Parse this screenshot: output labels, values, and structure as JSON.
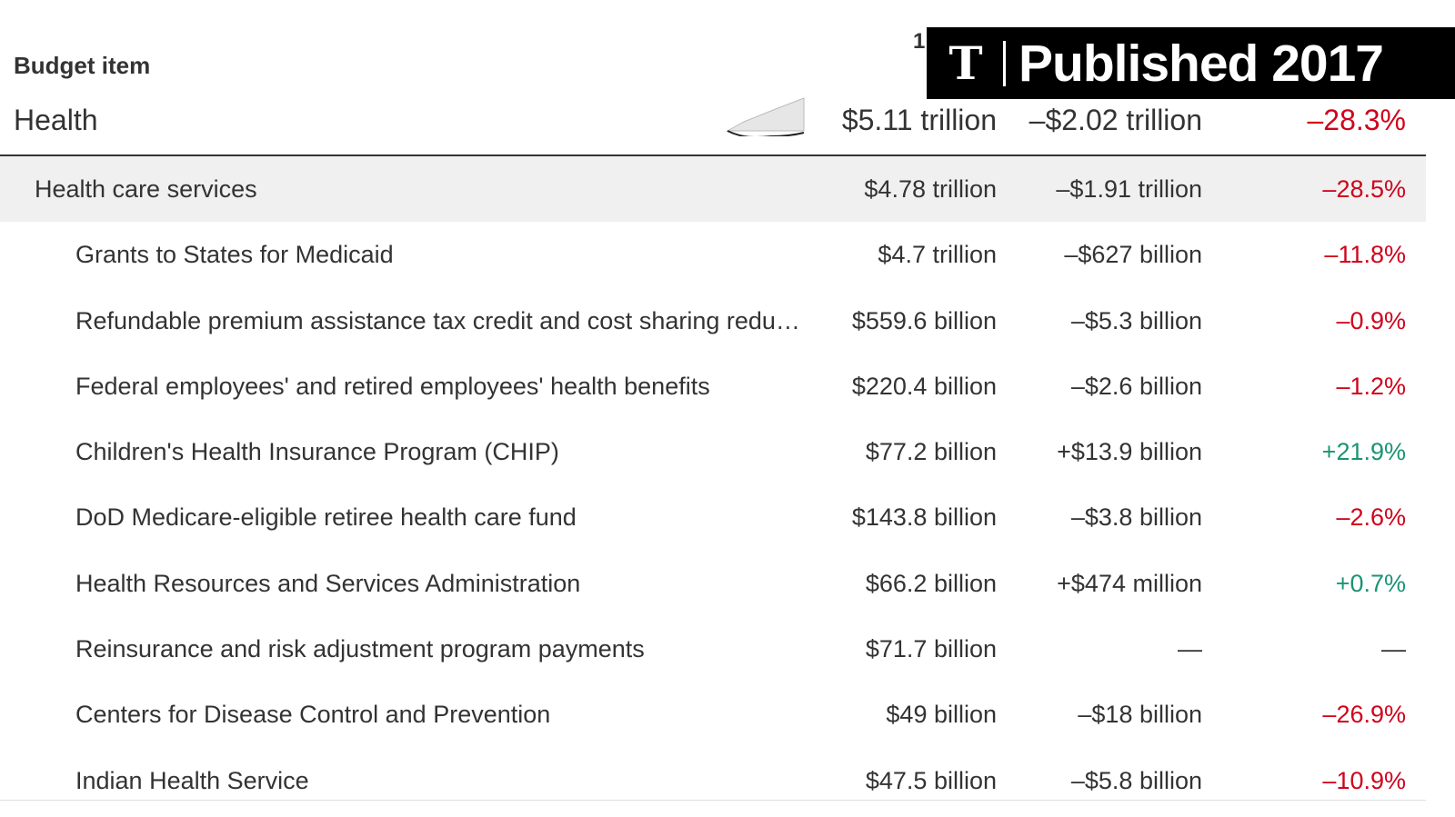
{
  "header": {
    "label": "Budget item",
    "col_fragment": "1"
  },
  "banner": {
    "logo": "𝕿",
    "text": "Published 2017"
  },
  "health": {
    "name": "Health",
    "amount": "$5.11 trillion",
    "change": "–$2.02 trillion",
    "pct": "–28.3%",
    "pct_status": "neg"
  },
  "rows": [
    {
      "name": "Health care services",
      "amount": "$4.78 trillion",
      "change": "–$1.91 trillion",
      "pct": "–28.5%",
      "status": "neg",
      "sub": true
    },
    {
      "name": "Grants to States for Medicaid",
      "amount": "$4.7 trillion",
      "change": "–$627 billion",
      "pct": "–11.8%",
      "status": "neg"
    },
    {
      "name": "Refundable premium assistance tax credit and cost sharing redu…",
      "amount": "$559.6 billion",
      "change": "–$5.3 billion",
      "pct": "–0.9%",
      "status": "neg"
    },
    {
      "name": "Federal employees' and retired employees' health benefits",
      "amount": "$220.4 billion",
      "change": "–$2.6 billion",
      "pct": "–1.2%",
      "status": "neg"
    },
    {
      "name": "Children's Health Insurance Program (CHIP)",
      "amount": "$77.2 billion",
      "change": "+$13.9 billion",
      "pct": "+21.9%",
      "status": "pos"
    },
    {
      "name": "DoD Medicare-eligible retiree health care fund",
      "amount": "$143.8 billion",
      "change": "–$3.8 billion",
      "pct": "–2.6%",
      "status": "neg"
    },
    {
      "name": "Health Resources and Services Administration",
      "amount": "$66.2 billion",
      "change": "+$474 million",
      "pct": "+0.7%",
      "status": "pos"
    },
    {
      "name": "Reinsurance and risk adjustment program payments",
      "amount": "$71.7 billion",
      "change": "—",
      "pct": "—",
      "status": "neu"
    },
    {
      "name": "Centers for Disease Control and Prevention",
      "amount": "$49 billion",
      "change": "–$18 billion",
      "pct": "–26.9%",
      "status": "neg"
    },
    {
      "name": "Indian Health Service",
      "amount": "$47.5 billion",
      "change": "–$5.8 billion",
      "pct": "–10.9%",
      "status": "neg"
    }
  ],
  "colors": {
    "negative": "#d0021b",
    "positive": "#1a9473",
    "banner_bg": "#000000",
    "row_highlight": "#f0f0f0"
  }
}
